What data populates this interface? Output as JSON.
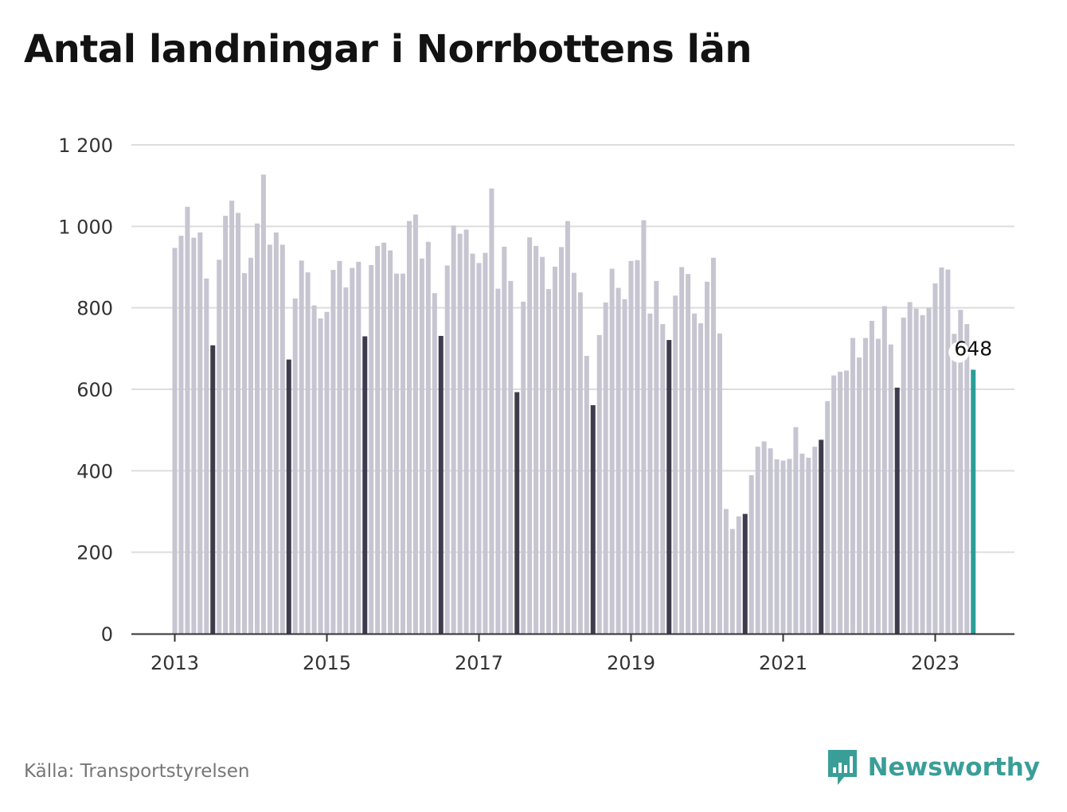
{
  "title": "Antal landningar i Norrbottens län",
  "source": "Källa: Transportstyrelsen",
  "brand": {
    "name": "Newsworthy",
    "icon": "newsworthy-logo-icon"
  },
  "colors": {
    "bar": "#c6c5d1",
    "bar_july": "#3e3c4c",
    "bar_latest": "#2b9d97",
    "grid": "#dddddd",
    "axis": "#333333",
    "brand": "#3a9e98"
  },
  "chart_data": {
    "type": "bar",
    "title": "Antal landningar i Norrbottens län",
    "xlabel": "",
    "ylabel": "",
    "ylim": [
      0,
      1200
    ],
    "yticks": [
      0,
      200,
      400,
      600,
      800,
      1000,
      1200
    ],
    "ytick_labels": [
      "0",
      "200",
      "400",
      "600",
      "800",
      "1 000",
      "1 200"
    ],
    "xtick_labels": [
      "2013",
      "2015",
      "2017",
      "2019",
      "2021",
      "2023"
    ],
    "start": "2013-01",
    "end": "2023-07",
    "grid": true,
    "highlight_month": "July",
    "annotation": {
      "label": "648",
      "month": "2023-07"
    },
    "values": [
      947,
      977,
      1048,
      972,
      985,
      872,
      708,
      918,
      1026,
      1063,
      1033,
      885,
      923,
      1007,
      1127,
      955,
      985,
      955,
      673,
      823,
      916,
      887,
      806,
      774,
      790,
      893,
      915,
      850,
      898,
      913,
      730,
      905,
      952,
      960,
      941,
      884,
      884,
      1013,
      1029,
      921,
      962,
      836,
      731,
      904,
      1002,
      982,
      992,
      933,
      910,
      935,
      1093,
      847,
      950,
      866,
      593,
      815,
      973,
      952,
      925,
      846,
      901,
      949,
      1013,
      886,
      838,
      682,
      561,
      733,
      813,
      896,
      849,
      821,
      915,
      917,
      1015,
      786,
      866,
      760,
      721,
      830,
      900,
      883,
      786,
      762,
      864,
      923,
      737,
      306,
      257,
      288,
      294,
      389,
      459,
      472,
      455,
      428,
      425,
      429,
      507,
      442,
      432,
      459,
      476,
      571,
      634,
      643,
      646,
      726,
      678,
      726,
      768,
      724,
      804,
      710,
      604,
      776,
      814,
      798,
      782,
      800,
      860,
      899,
      894,
      736,
      795,
      760,
      648
    ]
  }
}
